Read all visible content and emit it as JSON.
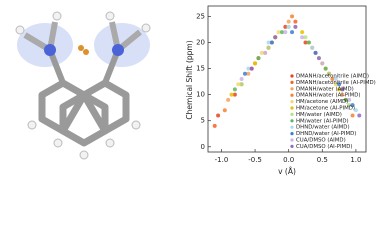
{
  "chart_data": {
    "type": "scatter",
    "xlabel": "v (Å)",
    "ylabel": "Chemical Shift (ppm)",
    "xlim": [
      -1.2,
      1.15
    ],
    "ylim": [
      -1,
      27
    ],
    "xticks": [
      {
        "value": -1,
        "label": "-1.0"
      },
      -0.5,
      {
        "value": 0,
        "label": "0.0"
      },
      0.5,
      {
        "value": 1,
        "label": "1.0"
      }
    ],
    "yticks": [
      0,
      5,
      10,
      15,
      20,
      25
    ],
    "legend": "right",
    "series": [
      {
        "name": "DMANH/acetonitrile (AIMD)",
        "color": "#e8431c",
        "x": [
          -1.05,
          -0.8,
          -0.55,
          -0.3,
          -0.05,
          0.25,
          0.6
        ],
        "values": [
          6,
          10,
          15,
          19,
          23,
          20,
          14
        ]
      },
      {
        "name": "DMANH/acetonitrile (AI-PIMD)",
        "color": "#f26522",
        "x": [
          -1.1,
          -0.7,
          -0.45,
          -0.2,
          0.1,
          0.4,
          0.85
        ],
        "values": [
          4,
          12,
          17,
          21,
          24,
          18,
          9
        ]
      },
      {
        "name": "DMANH/water (AIMD)",
        "color": "#f7a35c",
        "x": [
          -0.9,
          -0.6,
          -0.35,
          0,
          0.3,
          0.55,
          0.8
        ],
        "values": [
          9,
          14,
          18,
          24,
          20,
          15,
          10
        ]
      },
      {
        "name": "DMANH/water (AI-PIMD)",
        "color": "#f58231",
        "x": [
          -0.95,
          -0.5,
          -0.25,
          0.05,
          0.35,
          0.65,
          0.95
        ],
        "values": [
          7,
          16,
          20,
          25,
          19,
          13,
          6
        ]
      },
      {
        "name": "HM/acetone (AIMD)",
        "color": "#f5d76e",
        "x": [
          -0.75,
          -0.4,
          -0.15,
          0.1,
          0.45,
          0.7
        ],
        "values": [
          12,
          18,
          22,
          23,
          17,
          12
        ]
      },
      {
        "name": "HM/acetone (AI-PIMD)",
        "color": "#e6c200",
        "x": [
          -0.85,
          -0.5,
          -0.2,
          0.2,
          0.5,
          0.75
        ],
        "values": [
          10,
          16,
          21,
          22,
          16,
          11
        ]
      },
      {
        "name": "HM/water (AIMD)",
        "color": "#b5e08a",
        "x": [
          -0.7,
          -0.3,
          0,
          0.25,
          0.6,
          0.9
        ],
        "values": [
          12,
          19,
          23,
          21,
          14,
          8
        ]
      },
      {
        "name": "HM/water (AI-PIMD)",
        "color": "#5cb85c",
        "x": [
          -0.8,
          -0.45,
          -0.1,
          0.3,
          0.55,
          0.85
        ],
        "values": [
          11,
          17,
          22,
          20,
          15,
          9
        ]
      },
      {
        "name": "DHND/water (AIMD)",
        "color": "#a9d8f0",
        "x": [
          -0.6,
          -0.3,
          0,
          0.35,
          0.7,
          1.0
        ],
        "values": [
          15,
          20,
          23,
          19,
          13,
          7
        ]
      },
      {
        "name": "DHND/water (AI-PIMD)",
        "color": "#3a7fd5",
        "x": [
          -0.65,
          -0.25,
          0.05,
          0.4,
          0.75,
          0.95
        ],
        "values": [
          14,
          20,
          22,
          18,
          12,
          8
        ]
      },
      {
        "name": "CUA/DMSO (AIMD)",
        "color": "#c9b3e6",
        "x": [
          -0.7,
          -0.35,
          -0.05,
          0.2,
          0.5,
          0.9
        ],
        "values": [
          13,
          18,
          22,
          21,
          16,
          9
        ]
      },
      {
        "name": "CUA/DMSO (AI-PIMD)",
        "color": "#8e6bc4",
        "x": [
          -0.55,
          -0.2,
          0.1,
          0.45,
          0.8,
          1.05
        ],
        "values": [
          15,
          21,
          23,
          17,
          11,
          6
        ]
      }
    ]
  }
}
